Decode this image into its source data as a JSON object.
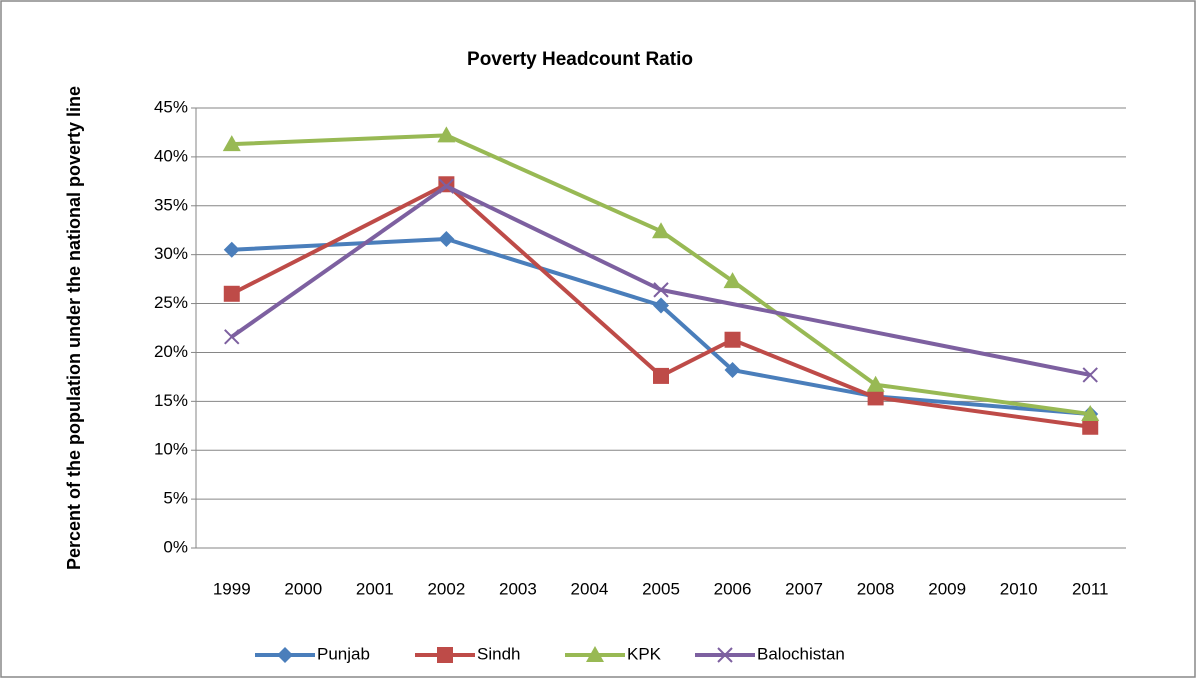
{
  "chart_data": {
    "type": "line",
    "title": "Poverty Headcount Ratio",
    "ylabel": "Percent of the population under the national poverty line",
    "xticks": [
      1999,
      2000,
      2001,
      2002,
      2003,
      2004,
      2005,
      2006,
      2007,
      2008,
      2009,
      2010,
      2011
    ],
    "xlim": [
      1998.5,
      2011.5
    ],
    "ylim": [
      0,
      45
    ],
    "yticks": [
      {
        "value": 0,
        "label": "0%"
      },
      {
        "value": 5,
        "label": "5%"
      },
      {
        "value": 10,
        "label": "10%"
      },
      {
        "value": 15,
        "label": "15%"
      },
      {
        "value": 20,
        "label": "20%"
      },
      {
        "value": 25,
        "label": "25%"
      },
      {
        "value": 30,
        "label": "30%"
      },
      {
        "value": 35,
        "label": "35%"
      },
      {
        "value": 40,
        "label": "40%"
      },
      {
        "value": 45,
        "label": "45%"
      }
    ],
    "grid": true,
    "legend": "bottom",
    "series": [
      {
        "name": "Punjab",
        "color": "#4a7ebb",
        "marker": "diamond",
        "x": [
          1999,
          2002,
          2005,
          2006,
          2008,
          2011
        ],
        "values": [
          30.5,
          31.6,
          24.8,
          18.2,
          15.5,
          13.7
        ]
      },
      {
        "name": "Sindh",
        "color": "#be4b48",
        "marker": "square",
        "x": [
          1999,
          2002,
          2005,
          2006,
          2008,
          2011
        ],
        "values": [
          26.0,
          37.2,
          17.6,
          21.3,
          15.4,
          12.4
        ]
      },
      {
        "name": "KPK",
        "color": "#98b954",
        "marker": "triangle",
        "x": [
          1999,
          2002,
          2005,
          2006,
          2008,
          2011
        ],
        "values": [
          41.3,
          42.2,
          32.4,
          27.3,
          16.7,
          13.7
        ]
      },
      {
        "name": "Balochistan",
        "color": "#7d60a0",
        "marker": "x",
        "x": [
          1999,
          2002,
          2005,
          2011
        ],
        "values": [
          21.6,
          37.0,
          26.4,
          17.7
        ]
      }
    ]
  }
}
